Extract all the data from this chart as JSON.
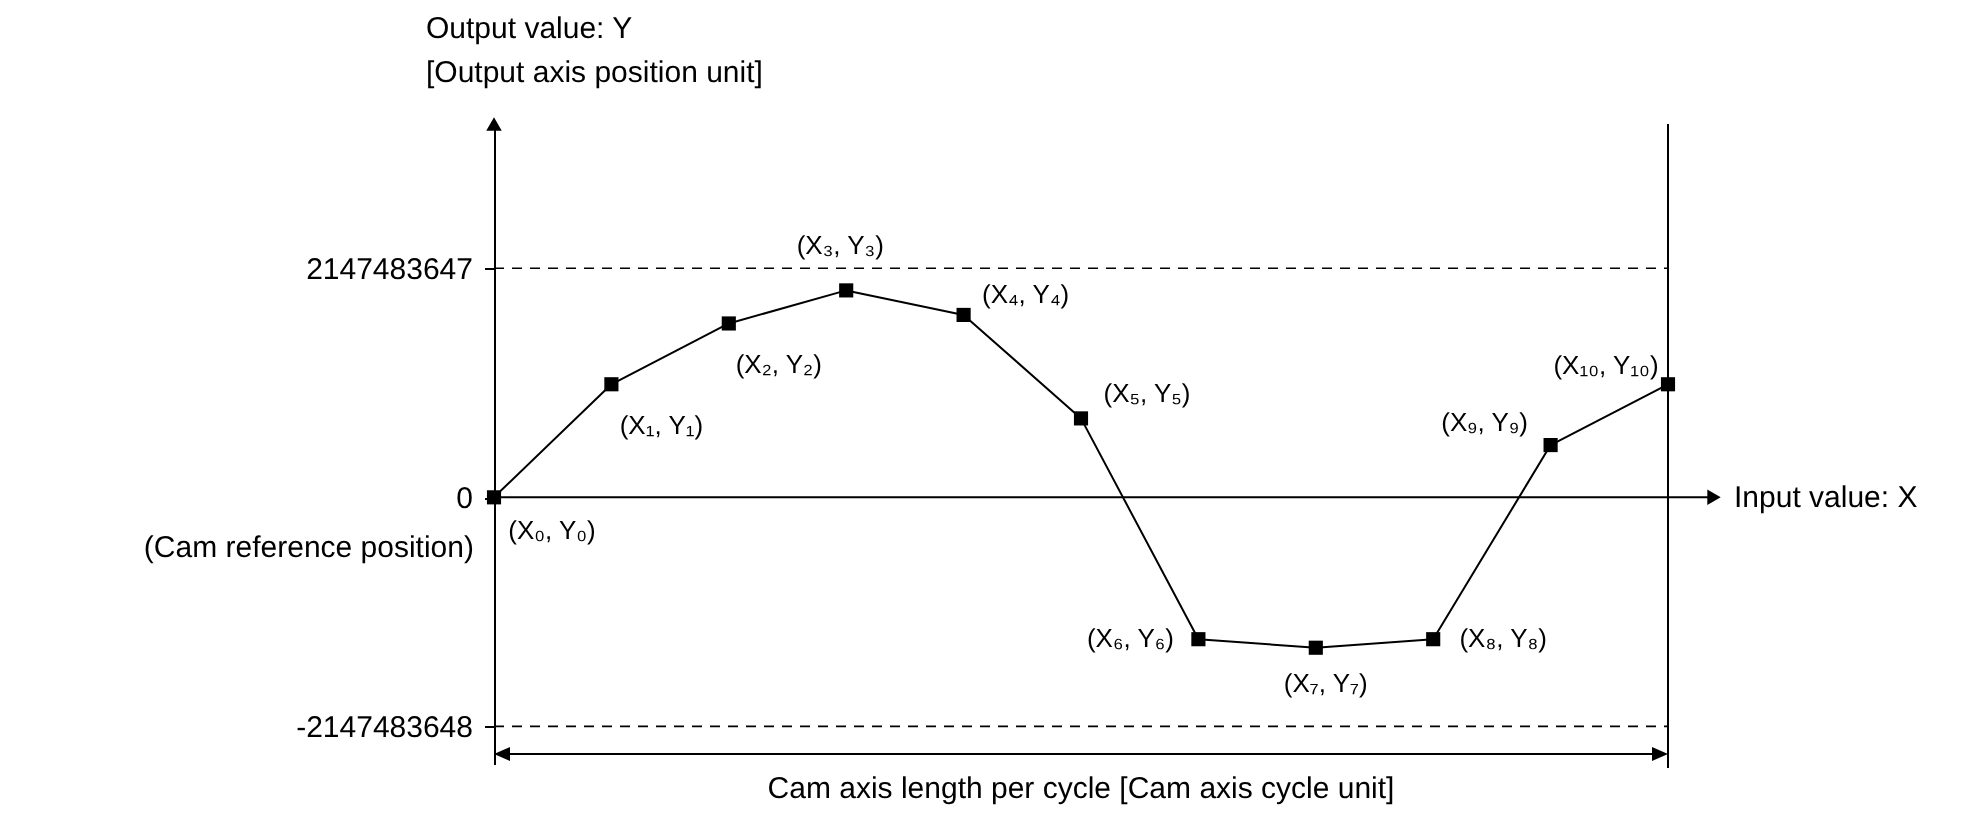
{
  "chart_data": {
    "type": "line",
    "xlabel": "Input value: X",
    "ylabel": "Output value: Y\n[Output axis position unit]",
    "categories": [
      null,
      null,
      null,
      null,
      null,
      null,
      null,
      null,
      null,
      null,
      null
    ],
    "series": [
      {
        "color": "#000000",
        "values": [
          0,
          1060000000,
          1630000000,
          1940000000,
          1710000000,
          740000000,
          -1330000000,
          -1410000000,
          -1330000000,
          490000000,
          1060000000
        ],
        "value_labels": [
          "(X₀, Y₀)",
          "(X₁, Y₁)",
          "(X₂, Y₂)",
          "(X₃, Y₃)",
          "(X₄, Y₄)",
          "(X₅, Y₅)",
          "(X₆, Y₆)",
          "(X₇, Y₇)",
          "(X₈, Y₈)",
          "(X₉, Y₉)",
          "(X₁₀, Y₁₀)"
        ]
      }
    ],
    "ylim": [
      -2500000000,
      3500000000
    ],
    "yticks": [
      -2147483648,
      0,
      2147483647
    ],
    "tick_labels": "y",
    "marker": "square",
    "line_style": "solid",
    "grid": false,
    "ref_lines": [
      {
        "axis": "y",
        "value": 2147483647,
        "line_style": "dashed",
        "color": "#000000"
      },
      {
        "axis": "y",
        "value": -2147483648,
        "line_style": "dashed",
        "color": "#000000"
      }
    ],
    "annotations": [
      "(Cam reference position)",
      "Cam axis length per cycle [Cam axis cycle unit]"
    ]
  }
}
